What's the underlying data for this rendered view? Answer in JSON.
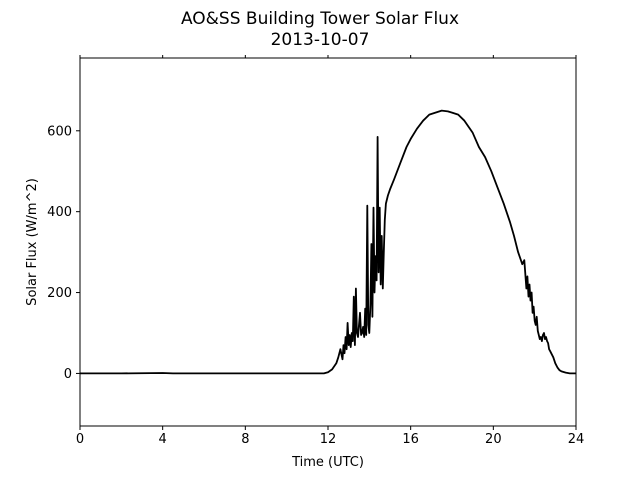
{
  "chart_data": {
    "type": "line",
    "title": "AO&SS Building Tower Solar Flux",
    "subtitle": "2013-10-07",
    "xlabel": "Time (UTC)",
    "ylabel": "Solar Flux (W/m^2)",
    "xlim": [
      0,
      24
    ],
    "ylim": [
      -130,
      780
    ],
    "xticks": [
      0,
      4,
      8,
      12,
      16,
      20,
      24
    ],
    "yticks": [
      0,
      200,
      400,
      600
    ],
    "grid": false,
    "legend": "none",
    "line_color": "#000000",
    "series": [
      {
        "x": [
          0,
          2,
          4,
          4.5,
          5,
          6,
          8,
          10,
          11.5,
          11.8,
          12.0,
          12.2,
          12.4,
          12.5,
          12.6,
          12.7,
          12.75,
          12.8,
          12.85,
          12.9,
          12.95,
          13.0,
          13.05,
          13.1,
          13.15,
          13.2,
          13.25,
          13.3,
          13.35,
          13.4,
          13.45,
          13.5,
          13.55,
          13.6,
          13.65,
          13.7,
          13.75,
          13.8,
          13.85,
          13.9,
          13.95,
          14.0,
          14.05,
          14.1,
          14.15,
          14.2,
          14.25,
          14.3,
          14.35,
          14.4,
          14.45,
          14.5,
          14.55,
          14.6,
          14.65,
          14.7,
          14.75,
          14.8,
          14.9,
          15.0,
          15.2,
          15.5,
          15.8,
          16.0,
          16.3,
          16.6,
          16.9,
          17.2,
          17.5,
          17.8,
          18.0,
          18.3,
          18.6,
          19.0,
          19.3,
          19.6,
          19.9,
          20.2,
          20.5,
          20.8,
          21.0,
          21.2,
          21.4,
          21.5,
          21.6,
          21.65,
          21.7,
          21.75,
          21.8,
          21.85,
          21.9,
          21.95,
          22.0,
          22.05,
          22.1,
          22.15,
          22.2,
          22.25,
          22.3,
          22.35,
          22.4,
          22.45,
          22.5,
          22.55,
          22.6,
          22.65,
          22.7,
          22.75,
          22.8,
          22.9,
          23.0,
          23.1,
          23.2,
          23.3,
          23.5,
          23.7,
          24.0
        ],
        "y": [
          0,
          0,
          1,
          0,
          0,
          0,
          0,
          0,
          0,
          0,
          3,
          10,
          25,
          40,
          60,
          35,
          70,
          50,
          90,
          60,
          125,
          70,
          95,
          65,
          100,
          80,
          190,
          70,
          210,
          100,
          90,
          120,
          150,
          95,
          100,
          115,
          90,
          160,
          95,
          415,
          120,
          100,
          170,
          320,
          140,
          410,
          200,
          290,
          230,
          585,
          250,
          410,
          220,
          340,
          210,
          300,
          380,
          420,
          440,
          455,
          480,
          520,
          560,
          580,
          605,
          625,
          640,
          645,
          650,
          648,
          645,
          640,
          625,
          595,
          560,
          535,
          500,
          460,
          420,
          375,
          340,
          300,
          270,
          280,
          210,
          240,
          190,
          220,
          180,
          200,
          150,
          165,
          130,
          120,
          140,
          105,
          95,
          85,
          90,
          80,
          95,
          100,
          85,
          90,
          80,
          75,
          60,
          55,
          50,
          40,
          25,
          15,
          8,
          5,
          2,
          0,
          0
        ]
      }
    ]
  }
}
